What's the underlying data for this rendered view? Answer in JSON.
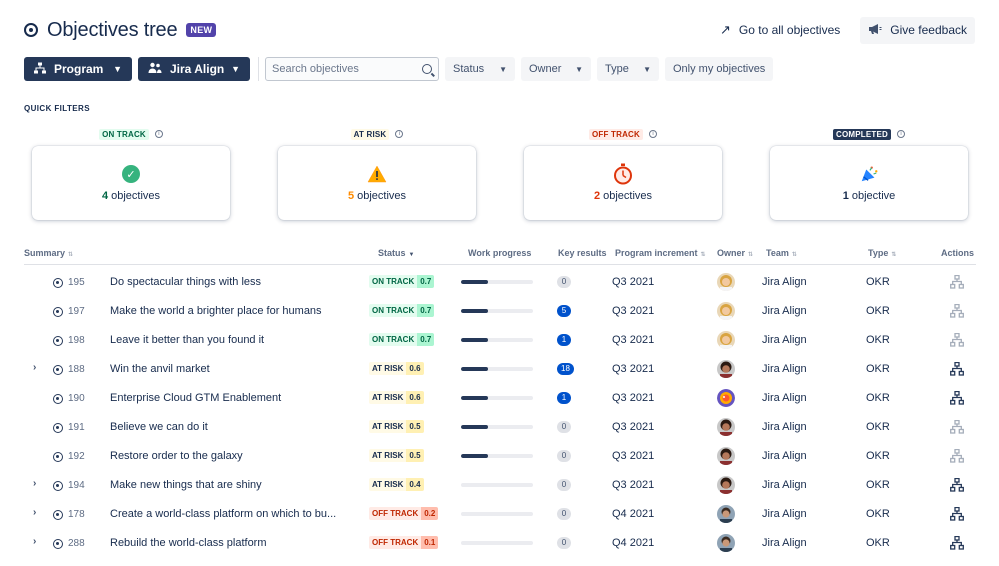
{
  "header": {
    "title": "Objectives tree",
    "badge": "NEW",
    "go_to_all": "Go to all objectives",
    "give_feedback": "Give feedback"
  },
  "toolbar": {
    "program_label": "Program",
    "jira_align_label": "Jira Align",
    "search_placeholder": "Search objectives",
    "status_label": "Status",
    "owner_label": "Owner",
    "type_label": "Type",
    "only_mine_label": "Only my objectives"
  },
  "quick_filters": {
    "label": "QUICK FILTERS",
    "cards": [
      {
        "lozenge": "ON TRACK",
        "count": "4",
        "noun": "objectives",
        "count_color": "#006644",
        "icon": "check-circle-icon"
      },
      {
        "lozenge": "AT RISK",
        "count": "5",
        "noun": "objectives",
        "count_color": "#ff8b00",
        "icon": "warning-icon"
      },
      {
        "lozenge": "OFF TRACK",
        "count": "2",
        "noun": "objectives",
        "count_color": "#de350b",
        "icon": "stopwatch-icon"
      },
      {
        "lozenge": "COMPLETED",
        "count": "1",
        "noun": "objective",
        "count_color": "#172b4d",
        "icon": "celebration-icon"
      }
    ]
  },
  "table": {
    "columns": {
      "summary": "Summary",
      "status": "Status",
      "work_progress": "Work progress",
      "key_results": "Key results",
      "program_increment": "Program increment",
      "owner": "Owner",
      "team": "Team",
      "type": "Type",
      "actions": "Actions"
    },
    "rows": [
      {
        "expand": false,
        "id": "195",
        "summary": "Do spectacular things with less",
        "status": "ON TRACK",
        "score": "0.7",
        "kind": "on",
        "progress": 0.38,
        "kr": "0",
        "pi": "Q3 2021",
        "avatar": "blonde",
        "team": "Jira Align",
        "type": "OKR",
        "hier_active": false
      },
      {
        "expand": false,
        "id": "197",
        "summary": "Make the world a brighter place for humans",
        "status": "ON TRACK",
        "score": "0.7",
        "kind": "on",
        "progress": 0.38,
        "kr": "5",
        "pi": "Q3 2021",
        "avatar": "blonde",
        "team": "Jira Align",
        "type": "OKR",
        "hier_active": false
      },
      {
        "expand": false,
        "id": "198",
        "summary": "Leave it better than you found it",
        "status": "ON TRACK",
        "score": "0.7",
        "kind": "on",
        "progress": 0.38,
        "kr": "1",
        "pi": "Q3 2021",
        "avatar": "blonde",
        "team": "Jira Align",
        "type": "OKR",
        "hier_active": false
      },
      {
        "expand": true,
        "id": "188",
        "summary": "Win the anvil market",
        "status": "AT RISK",
        "score": "0.6",
        "kind": "risk",
        "progress": 0.38,
        "kr": "18",
        "pi": "Q3 2021",
        "avatar": "dark",
        "team": "Jira Align",
        "type": "OKR",
        "hier_active": true
      },
      {
        "expand": false,
        "id": "190",
        "summary": "Enterprise Cloud GTM Enablement",
        "status": "AT RISK",
        "score": "0.6",
        "kind": "risk",
        "progress": 0.38,
        "kr": "1",
        "pi": "Q3 2021",
        "avatar": "colorful",
        "team": "Jira Align",
        "type": "OKR",
        "hier_active": true
      },
      {
        "expand": false,
        "id": "191",
        "summary": "Believe we can do it",
        "status": "AT RISK",
        "score": "0.5",
        "kind": "risk",
        "progress": 0.38,
        "kr": "0",
        "pi": "Q3 2021",
        "avatar": "dark",
        "team": "Jira Align",
        "type": "OKR",
        "hier_active": false
      },
      {
        "expand": false,
        "id": "192",
        "summary": "Restore order to the galaxy",
        "status": "AT RISK",
        "score": "0.5",
        "kind": "risk",
        "progress": 0.38,
        "kr": "0",
        "pi": "Q3 2021",
        "avatar": "dark",
        "team": "Jira Align",
        "type": "OKR",
        "hier_active": false
      },
      {
        "expand": true,
        "id": "194",
        "summary": "Make new things that are shiny",
        "status": "AT RISK",
        "score": "0.4",
        "kind": "risk",
        "progress": 0,
        "kr": "0",
        "pi": "Q3 2021",
        "avatar": "dark",
        "team": "Jira Align",
        "type": "OKR",
        "hier_active": true
      },
      {
        "expand": true,
        "id": "178",
        "summary": "Create a world-class platform on which to bu...",
        "status": "OFF TRACK",
        "score": "0.2",
        "kind": "off",
        "progress": 0,
        "kr": "0",
        "pi": "Q4 2021",
        "avatar": "man",
        "team": "Jira Align",
        "type": "OKR",
        "hier_active": true
      },
      {
        "expand": true,
        "id": "288",
        "summary": "Rebuild the world-class platform",
        "status": "OFF TRACK",
        "score": "0.1",
        "kind": "off",
        "progress": 0,
        "kr": "0",
        "pi": "Q4 2021",
        "avatar": "man",
        "team": "Jira Align",
        "type": "OKR",
        "hier_active": true
      }
    ]
  }
}
